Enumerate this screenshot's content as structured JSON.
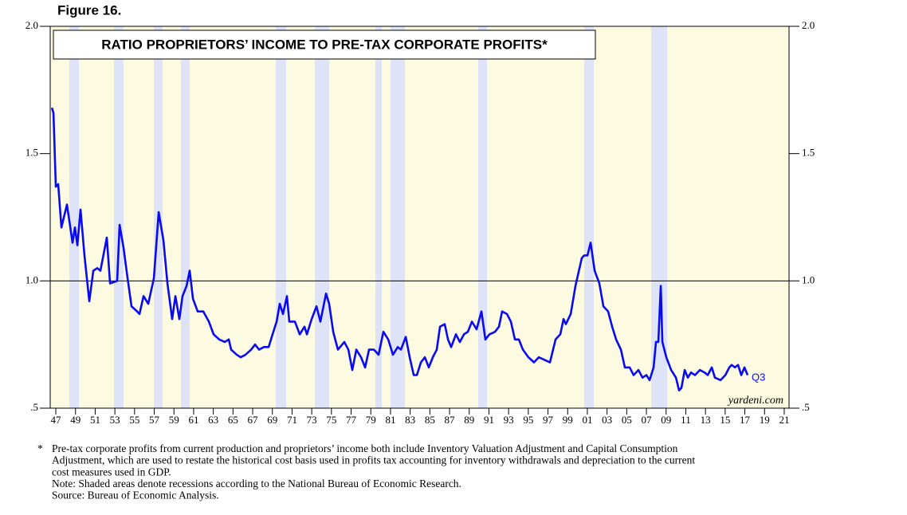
{
  "figure_label": "Figure 16.",
  "chart_data": {
    "type": "line",
    "title": "RATIO PROPRIETORS’ INCOME TO PRE-TAX CORPORATE PROFITS*",
    "x": [
      1946.6,
      1946.76,
      1947.0,
      1947.24,
      1947.57,
      1948.13,
      1948.7,
      1948.94,
      1949.19,
      1949.51,
      1949.91,
      1950.4,
      1950.81,
      1951.21,
      1951.53,
      1952.18,
      1952.51,
      1953.23,
      1953.48,
      1953.88,
      1954.29,
      1954.69,
      1955.26,
      1955.5,
      1955.91,
      1956.39,
      1956.96,
      1957.45,
      1957.93,
      1958.34,
      1958.82,
      1959.15,
      1959.55,
      1959.87,
      1960.28,
      1960.6,
      1960.93,
      1961.41,
      1961.98,
      1962.55,
      1963.03,
      1963.6,
      1964.17,
      1964.57,
      1964.81,
      1965.38,
      1965.79,
      1966.27,
      1966.84,
      1967.24,
      1967.65,
      1968.13,
      1968.62,
      1969.02,
      1969.43,
      1969.75,
      1970.08,
      1970.48,
      1970.72,
      1971.29,
      1971.78,
      1972.26,
      1972.51,
      1972.99,
      1973.48,
      1973.88,
      1974.45,
      1974.77,
      1975.18,
      1975.66,
      1976.31,
      1976.72,
      1977.12,
      1977.53,
      1978.01,
      1978.42,
      1978.82,
      1979.31,
      1979.79,
      1980.28,
      1980.77,
      1981.25,
      1981.74,
      1982.06,
      1982.55,
      1982.95,
      1983.36,
      1983.68,
      1984.09,
      1984.49,
      1984.89,
      1985.3,
      1985.7,
      1986.03,
      1986.51,
      1986.84,
      1987.16,
      1987.65,
      1988.05,
      1988.46,
      1988.86,
      1989.27,
      1989.75,
      1990.24,
      1990.64,
      1991.05,
      1991.62,
      1992.02,
      1992.34,
      1992.83,
      1993.23,
      1993.64,
      1994.04,
      1994.45,
      1995.01,
      1995.58,
      1996.07,
      1996.63,
      1997.2,
      1997.77,
      1998.25,
      1998.58,
      1998.82,
      1999.31,
      1999.79,
      2000.44,
      2000.68,
      2001.01,
      2001.33,
      2001.74,
      2002.22,
      2002.63,
      2003.11,
      2003.52,
      2003.92,
      2004.41,
      2004.81,
      2005.3,
      2005.7,
      2006.19,
      2006.6,
      2007.0,
      2007.32,
      2007.73,
      2007.97,
      2008.21,
      2008.46,
      2008.62,
      2009.02,
      2009.51,
      2010.0,
      2010.32,
      2010.56,
      2010.89,
      2011.21,
      2011.53,
      2011.94,
      2012.43,
      2012.91,
      2013.23,
      2013.64,
      2013.96,
      2014.53,
      2015.02,
      2015.42,
      2015.66,
      2015.99,
      2016.31,
      2016.64,
      2016.96,
      2017.28
    ],
    "series": [
      {
        "color": "#0a0aee",
        "values": [
          1.68,
          1.66,
          1.37,
          1.38,
          1.21,
          1.3,
          1.15,
          1.21,
          1.14,
          1.28,
          1.1,
          0.92,
          1.04,
          1.05,
          1.04,
          1.17,
          0.99,
          1.0,
          1.22,
          1.13,
          1.01,
          0.9,
          0.88,
          0.87,
          0.94,
          0.91,
          1.01,
          1.27,
          1.16,
          0.99,
          0.85,
          0.94,
          0.85,
          0.94,
          0.98,
          1.04,
          0.93,
          0.88,
          0.88,
          0.84,
          0.79,
          0.77,
          0.76,
          0.77,
          0.73,
          0.71,
          0.7,
          0.71,
          0.73,
          0.75,
          0.73,
          0.74,
          0.74,
          0.79,
          0.84,
          0.91,
          0.87,
          0.94,
          0.84,
          0.84,
          0.79,
          0.82,
          0.79,
          0.85,
          0.9,
          0.84,
          0.95,
          0.91,
          0.8,
          0.73,
          0.76,
          0.73,
          0.65,
          0.73,
          0.7,
          0.66,
          0.73,
          0.73,
          0.71,
          0.8,
          0.77,
          0.71,
          0.74,
          0.73,
          0.78,
          0.7,
          0.63,
          0.63,
          0.68,
          0.7,
          0.66,
          0.7,
          0.73,
          0.82,
          0.83,
          0.77,
          0.74,
          0.79,
          0.76,
          0.79,
          0.8,
          0.84,
          0.81,
          0.88,
          0.77,
          0.79,
          0.8,
          0.82,
          0.88,
          0.87,
          0.84,
          0.77,
          0.77,
          0.73,
          0.7,
          0.68,
          0.7,
          0.69,
          0.68,
          0.77,
          0.79,
          0.85,
          0.83,
          0.87,
          0.98,
          1.09,
          1.1,
          1.1,
          1.15,
          1.04,
          0.99,
          0.9,
          0.88,
          0.82,
          0.77,
          0.73,
          0.66,
          0.66,
          0.63,
          0.65,
          0.62,
          0.63,
          0.61,
          0.66,
          0.76,
          0.76,
          0.98,
          0.76,
          0.7,
          0.65,
          0.62,
          0.57,
          0.58,
          0.65,
          0.62,
          0.64,
          0.63,
          0.65,
          0.64,
          0.63,
          0.66,
          0.62,
          0.61,
          0.63,
          0.66,
          0.67,
          0.66,
          0.67,
          0.63,
          0.66,
          0.63
        ]
      }
    ],
    "recessions": [
      [
        1948.38,
        1949.35
      ],
      [
        1952.91,
        1953.88
      ],
      [
        1956.96,
        1957.85
      ],
      [
        1959.71,
        1960.6
      ],
      [
        1969.35,
        1970.4
      ],
      [
        1973.32,
        1974.77
      ],
      [
        1979.47,
        1980.12
      ],
      [
        1981.01,
        1982.47
      ],
      [
        1989.91,
        1990.81
      ],
      [
        2000.68,
        2001.66
      ],
      [
        2007.49,
        2009.11
      ]
    ],
    "reference_line": 1.0,
    "xlim": [
      1946.43,
      2021.49
    ],
    "xticks": [
      {
        "value": 1947,
        "label": "47"
      },
      {
        "value": 1949,
        "label": "49"
      },
      {
        "value": 1951,
        "label": "51"
      },
      {
        "value": 1953,
        "label": "53"
      },
      {
        "value": 1955,
        "label": "55"
      },
      {
        "value": 1957,
        "label": "57"
      },
      {
        "value": 1959,
        "label": "59"
      },
      {
        "value": 1961,
        "label": "61"
      },
      {
        "value": 1963,
        "label": "63"
      },
      {
        "value": 1965,
        "label": "65"
      },
      {
        "value": 1967,
        "label": "67"
      },
      {
        "value": 1969,
        "label": "69"
      },
      {
        "value": 1971,
        "label": "71"
      },
      {
        "value": 1973,
        "label": "73"
      },
      {
        "value": 1975,
        "label": "75"
      },
      {
        "value": 1977,
        "label": "77"
      },
      {
        "value": 1979,
        "label": "79"
      },
      {
        "value": 1981,
        "label": "81"
      },
      {
        "value": 1983,
        "label": "83"
      },
      {
        "value": 1985,
        "label": "85"
      },
      {
        "value": 1987,
        "label": "87"
      },
      {
        "value": 1989,
        "label": "89"
      },
      {
        "value": 1991,
        "label": "91"
      },
      {
        "value": 1993,
        "label": "93"
      },
      {
        "value": 1995,
        "label": "95"
      },
      {
        "value": 1997,
        "label": "97"
      },
      {
        "value": 1999,
        "label": "99"
      },
      {
        "value": 2001,
        "label": "01"
      },
      {
        "value": 2003,
        "label": "03"
      },
      {
        "value": 2005,
        "label": "05"
      },
      {
        "value": 2007,
        "label": "07"
      },
      {
        "value": 2009,
        "label": "09"
      },
      {
        "value": 2011,
        "label": "11"
      },
      {
        "value": 2013,
        "label": "13"
      },
      {
        "value": 2015,
        "label": "15"
      },
      {
        "value": 2017,
        "label": "17"
      },
      {
        "value": 2019,
        "label": "19"
      },
      {
        "value": 2021,
        "label": "21"
      }
    ],
    "ylim": [
      0.5,
      2.0
    ],
    "yticks": [
      {
        "value": 0.5,
        "label": ".5"
      },
      {
        "value": 1.0,
        "label": "1.0"
      },
      {
        "value": 1.5,
        "label": "1.5"
      },
      {
        "value": 2.0,
        "label": "2.0"
      }
    ],
    "annotations": {
      "last_point": "Q3",
      "watermark": "yardeni.com"
    }
  },
  "footnotes": {
    "marker": "*",
    "lines": [
      "Pre-tax corporate profits from current production and proprietors’ income both include Inventory Valuation Adjustment and Capital Consumption",
      "Adjustment, which are used to restate the historical cost basis used in profits tax accounting for inventory withdrawals and depreciation to the current",
      "cost measures used in GDP.",
      "Note: Shaded areas denote recessions according to the National Bureau of Economic Research.",
      "Source: Bureau of Economic Analysis."
    ]
  }
}
